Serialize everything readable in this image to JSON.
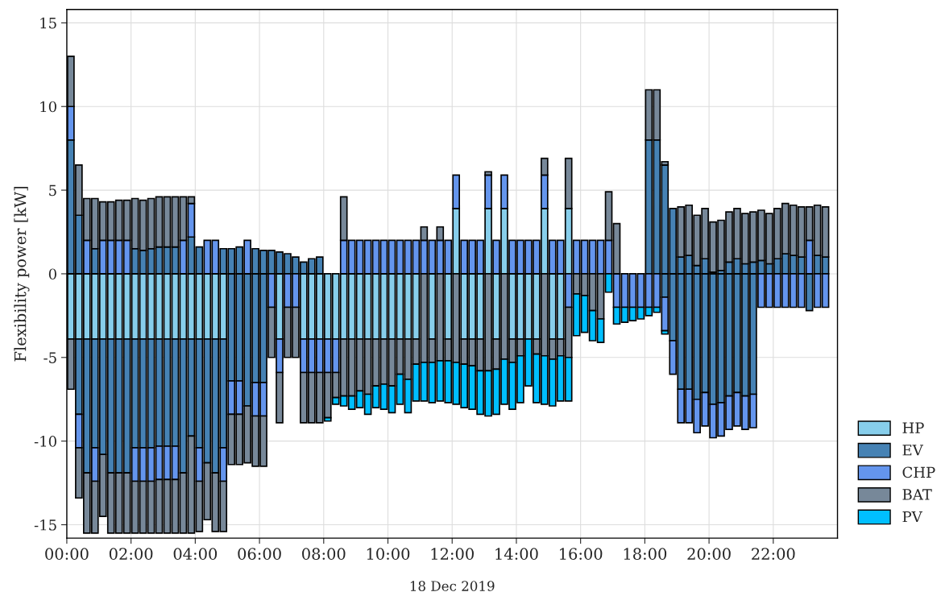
{
  "chart_data": {
    "type": "bar",
    "stacked": true,
    "xlabel": "18 Dec 2019",
    "ylabel": "Flexibility power [kW]",
    "x": [
      0.125,
      0.375,
      0.625,
      0.875,
      1.125,
      1.375,
      1.625,
      1.875,
      2.125,
      2.375,
      2.625,
      2.875,
      3.125,
      3.375,
      3.625,
      3.875,
      4.125,
      4.375,
      4.625,
      4.875,
      5.125,
      5.375,
      5.625,
      5.875,
      6.125,
      6.375,
      6.625,
      6.875,
      7.125,
      7.375,
      7.625,
      7.875,
      8.125,
      8.375,
      8.625,
      8.875,
      9.125,
      9.375,
      9.625,
      9.875,
      10.125,
      10.375,
      10.625,
      10.875,
      11.125,
      11.375,
      11.625,
      11.875,
      12.125,
      12.375,
      12.625,
      12.875,
      13.125,
      13.375,
      13.625,
      13.875,
      14.125,
      14.375,
      14.625,
      14.875,
      15.125,
      15.375,
      15.625,
      15.875,
      16.125,
      16.375,
      16.625,
      16.875,
      17.125,
      17.375,
      17.625,
      17.875,
      18.125,
      18.375,
      18.625,
      18.875,
      19.125,
      19.375,
      19.625,
      19.875,
      20.125,
      20.375,
      20.625,
      20.875,
      21.125,
      21.375,
      21.625,
      21.875,
      22.125,
      22.375,
      22.625,
      22.875,
      23.125,
      23.375,
      23.625
    ],
    "series": [
      {
        "name": "HP",
        "color": "#87ceeb",
        "values": [
          -3.9,
          -3.9,
          -3.9,
          -3.9,
          -3.9,
          -3.9,
          -3.9,
          -3.9,
          -3.9,
          -3.9,
          -3.9,
          -3.9,
          -3.9,
          -3.9,
          -3.9,
          -3.9,
          -3.9,
          -3.9,
          -3.9,
          -3.9,
          null,
          null,
          null,
          null,
          null,
          null,
          -3.9,
          null,
          null,
          -3.9,
          -3.9,
          -3.9,
          -3.9,
          -3.9,
          -3.9,
          -3.9,
          -3.9,
          -3.9,
          -3.9,
          -3.9,
          -3.9,
          -3.9,
          -3.9,
          -3.9,
          null,
          -3.9,
          null,
          -3.9,
          null,
          -3.9,
          -3.9,
          -3.9,
          null,
          -3.9,
          null,
          -3.9,
          -3.9,
          -3.9,
          -3.9,
          null,
          -3.9,
          -3.9,
          null,
          null,
          null,
          null,
          null,
          null,
          null,
          null,
          null,
          null,
          null,
          null,
          null,
          null,
          null,
          null,
          null,
          null,
          null,
          null,
          null,
          null,
          null,
          null,
          null,
          null,
          null,
          null,
          null,
          null,
          null,
          null,
          null
        ]
      },
      {
        "color": "#87ceeb",
        "values": [
          null,
          null,
          null,
          null,
          null,
          null,
          null,
          null,
          null,
          null,
          null,
          null,
          null,
          null,
          null,
          null,
          null,
          null,
          null,
          null,
          null,
          null,
          null,
          null,
          null,
          null,
          null,
          null,
          null,
          null,
          null,
          null,
          null,
          null,
          null,
          null,
          null,
          null,
          null,
          null,
          null,
          null,
          null,
          null,
          null,
          null,
          null,
          null,
          3.9,
          null,
          null,
          null,
          3.9,
          null,
          3.9,
          null,
          null,
          null,
          null,
          3.9,
          null,
          null,
          3.9,
          null,
          null,
          null,
          null,
          null,
          null,
          null,
          null,
          null,
          null,
          null,
          null,
          null,
          null,
          null,
          null,
          null,
          null,
          null,
          null,
          null,
          null,
          null,
          null,
          null,
          null,
          null,
          null,
          null,
          null,
          null,
          null
        ]
      },
      {
        "name": "EV",
        "color": "#4682b4",
        "values": [
          null,
          -4.5,
          -8.0,
          -6.5,
          -6.9,
          -8.0,
          -8.0,
          -8.0,
          -6.5,
          -6.5,
          -6.5,
          -6.4,
          -6.4,
          -6.4,
          -8.0,
          -5.8,
          -6.5,
          -7.4,
          -8.0,
          -6.5,
          -6.4,
          -6.4,
          -7.9,
          -6.5,
          -6.5,
          null,
          null,
          null,
          null,
          null,
          null,
          null,
          null,
          null,
          null,
          null,
          null,
          null,
          null,
          null,
          null,
          null,
          null,
          null,
          null,
          null,
          null,
          null,
          null,
          null,
          null,
          null,
          null,
          null,
          null,
          null,
          null,
          null,
          null,
          null,
          null,
          null,
          null,
          null,
          null,
          null,
          null,
          null,
          null,
          null,
          null,
          null,
          null,
          null,
          -1.4,
          -4.0,
          -6.9,
          -6.9,
          -7.5,
          -7.1,
          -7.8,
          -7.7,
          -7.3,
          -7.1,
          -7.3,
          -7.2,
          null,
          null,
          null,
          null,
          null,
          null,
          -2.2,
          null,
          null
        ]
      },
      {
        "color": "#4682b4",
        "values": [
          8.0,
          3.5,
          null,
          1.5,
          null,
          null,
          null,
          null,
          1.5,
          1.4,
          1.5,
          1.6,
          1.6,
          1.6,
          null,
          2.2,
          1.6,
          null,
          null,
          1.5,
          1.5,
          1.6,
          null,
          1.5,
          1.4,
          1.4,
          1.3,
          1.2,
          1.0,
          0.7,
          0.9,
          1.0,
          null,
          null,
          null,
          null,
          null,
          null,
          null,
          null,
          null,
          null,
          null,
          null,
          null,
          null,
          null,
          null,
          null,
          null,
          null,
          null,
          null,
          null,
          null,
          null,
          null,
          null,
          null,
          null,
          null,
          null,
          null,
          null,
          null,
          null,
          null,
          null,
          null,
          null,
          null,
          null,
          8.0,
          8.0,
          6.5,
          3.9,
          1.0,
          1.1,
          0.5,
          0.9,
          0.1,
          0.2,
          0.7,
          0.9,
          0.6,
          0.7,
          0.8,
          0.6,
          0.9,
          1.2,
          1.1,
          1.0,
          null,
          1.1,
          1.0
        ]
      },
      {
        "name": "CHP",
        "color": "#6495ed",
        "values": [
          null,
          -2.0,
          null,
          -2.0,
          null,
          null,
          null,
          null,
          -2.0,
          -2.0,
          -2.0,
          -2.0,
          -2.0,
          -2.0,
          null,
          null,
          -2.0,
          null,
          null,
          -2.0,
          -2.0,
          -2.0,
          null,
          -2.0,
          -2.0,
          -2.0,
          -2.0,
          -2.0,
          -2.0,
          -2.0,
          -2.0,
          -2.0,
          -2.0,
          -2.0,
          null,
          null,
          null,
          null,
          null,
          null,
          null,
          null,
          null,
          null,
          null,
          null,
          null,
          null,
          null,
          null,
          null,
          null,
          null,
          null,
          null,
          null,
          null,
          null,
          null,
          null,
          null,
          null,
          -2.0,
          null,
          null,
          null,
          null,
          null,
          -2.0,
          -2.0,
          -2.0,
          -2.0,
          -2.0,
          -2.0,
          -2.0,
          -2.0,
          -2.0,
          -2.0,
          -2.0,
          -2.0,
          -2.0,
          -2.0,
          -2.0,
          -2.0,
          -2.0,
          -2.0,
          -2.0,
          -2.0,
          -2.0,
          -2.0,
          -2.0,
          -2.0,
          null,
          -2.0,
          -2.0
        ]
      },
      {
        "color": "#6495ed",
        "values": [
          2.0,
          null,
          2.0,
          null,
          2.0,
          2.0,
          2.0,
          2.0,
          null,
          null,
          null,
          null,
          null,
          null,
          2.0,
          2.0,
          null,
          2.0,
          2.0,
          null,
          null,
          null,
          2.0,
          null,
          null,
          null,
          null,
          null,
          null,
          null,
          null,
          null,
          null,
          null,
          2.0,
          2.0,
          2.0,
          2.0,
          2.0,
          2.0,
          2.0,
          2.0,
          2.0,
          2.0,
          2.0,
          2.0,
          2.0,
          2.0,
          2.0,
          2.0,
          2.0,
          2.0,
          2.0,
          2.0,
          2.0,
          2.0,
          2.0,
          2.0,
          2.0,
          2.0,
          2.0,
          2.0,
          null,
          2.0,
          2.0,
          2.0,
          2.0,
          2.0,
          null,
          null,
          null,
          null,
          null,
          null,
          null,
          null,
          null,
          null,
          null,
          null,
          null,
          null,
          null,
          null,
          null,
          null,
          null,
          null,
          null,
          null,
          null,
          null,
          2.0,
          null,
          null
        ]
      },
      {
        "name": "BAT",
        "color": "#778899",
        "values": [
          -3.0,
          -3.0,
          -3.6,
          -3.1,
          -3.7,
          -3.6,
          -3.6,
          -3.6,
          -3.1,
          -3.1,
          -3.1,
          -3.2,
          -3.2,
          -3.2,
          -3.6,
          -5.8,
          -3.0,
          -3.4,
          -3.5,
          -3.0,
          -3.0,
          -3.0,
          -3.4,
          -3.0,
          -3.0,
          -3.0,
          -3.0,
          -3.0,
          -3.0,
          -3.0,
          -3.0,
          -3.0,
          -2.7,
          -1.5,
          -3.4,
          -3.4,
          -3.1,
          -3.3,
          -2.8,
          -2.7,
          -2.8,
          -2.1,
          -2.4,
          -1.5,
          -5.3,
          -1.4,
          -5.2,
          -1.3,
          -5.3,
          -1.5,
          -1.6,
          -1.9,
          -5.8,
          -1.8,
          -5.1,
          -1.4,
          -1.0,
          null,
          -0.9,
          -4.9,
          -1.2,
          -1.0,
          -3.0,
          -1.2,
          -1.3,
          -2.2,
          -2.7,
          null,
          null,
          null,
          null,
          null,
          null,
          null,
          null,
          null,
          null,
          null,
          null,
          null,
          null,
          null,
          null,
          null,
          null,
          null,
          null,
          null,
          null,
          null,
          null,
          null,
          null,
          null,
          null
        ]
      },
      {
        "color": "#778899",
        "values": [
          3.0,
          3.0,
          2.5,
          3.0,
          2.3,
          2.3,
          2.4,
          2.4,
          3.0,
          3.0,
          3.0,
          3.0,
          3.0,
          3.0,
          2.6,
          0.4,
          null,
          null,
          null,
          null,
          null,
          null,
          null,
          null,
          null,
          null,
          null,
          null,
          null,
          null,
          null,
          null,
          null,
          null,
          2.6,
          null,
          null,
          null,
          null,
          null,
          null,
          null,
          null,
          null,
          0.8,
          null,
          0.8,
          null,
          null,
          null,
          null,
          null,
          0.2,
          null,
          null,
          null,
          null,
          null,
          null,
          1.0,
          null,
          null,
          3.0,
          null,
          null,
          null,
          null,
          2.9,
          3.0,
          null,
          null,
          null,
          3.0,
          3.0,
          0.2,
          null,
          3.0,
          3.0,
          3.0,
          3.0,
          3.0,
          3.0,
          3.0,
          3.0,
          3.0,
          3.0,
          3.0,
          3.0,
          3.0,
          3.0,
          3.0,
          3.0,
          2.0,
          3.0,
          3.0
        ]
      },
      {
        "name": "PV",
        "color": "#00bfff",
        "values": [
          null,
          null,
          null,
          null,
          null,
          null,
          null,
          null,
          null,
          null,
          null,
          null,
          null,
          null,
          null,
          null,
          null,
          null,
          null,
          null,
          null,
          null,
          null,
          null,
          null,
          null,
          null,
          null,
          null,
          null,
          null,
          null,
          -0.2,
          -0.4,
          -0.6,
          -0.8,
          -1.0,
          -1.2,
          -1.3,
          -1.5,
          -1.6,
          -1.8,
          -2.0,
          -2.2,
          -2.3,
          -2.4,
          -2.4,
          -2.5,
          -2.5,
          -2.6,
          -2.6,
          -2.6,
          -2.7,
          -2.7,
          -2.7,
          -2.8,
          -2.8,
          -2.8,
          -2.9,
          -2.9,
          -2.8,
          -2.7,
          -2.6,
          -2.5,
          -2.2,
          -1.8,
          -1.4,
          -1.1,
          -1.0,
          -0.9,
          -0.8,
          -0.7,
          -0.5,
          -0.3,
          -0.2,
          null,
          null,
          null,
          null,
          null,
          null,
          null,
          null,
          null,
          null,
          null,
          null,
          null,
          null,
          null,
          null,
          null,
          null,
          null,
          null
        ]
      }
    ],
    "xlim": [
      0,
      24
    ],
    "xticks": [
      {
        "value": 0,
        "label": "00:00"
      },
      {
        "value": 2,
        "label": "02:00"
      },
      {
        "value": 4,
        "label": "04:00"
      },
      {
        "value": 6,
        "label": "06:00"
      },
      {
        "value": 8,
        "label": "08:00"
      },
      {
        "value": 10,
        "label": "10:00"
      },
      {
        "value": 12,
        "label": "12:00"
      },
      {
        "value": 14,
        "label": "14:00"
      },
      {
        "value": 16,
        "label": "16:00"
      },
      {
        "value": 18,
        "label": "18:00"
      },
      {
        "value": 20,
        "label": "20:00"
      },
      {
        "value": 22,
        "label": "22:00"
      }
    ],
    "ylim": [
      -15.8,
      15.8
    ],
    "yticks": [
      -15,
      -10,
      -5,
      0,
      5,
      10,
      15
    ],
    "grid": true,
    "legend": "right"
  }
}
